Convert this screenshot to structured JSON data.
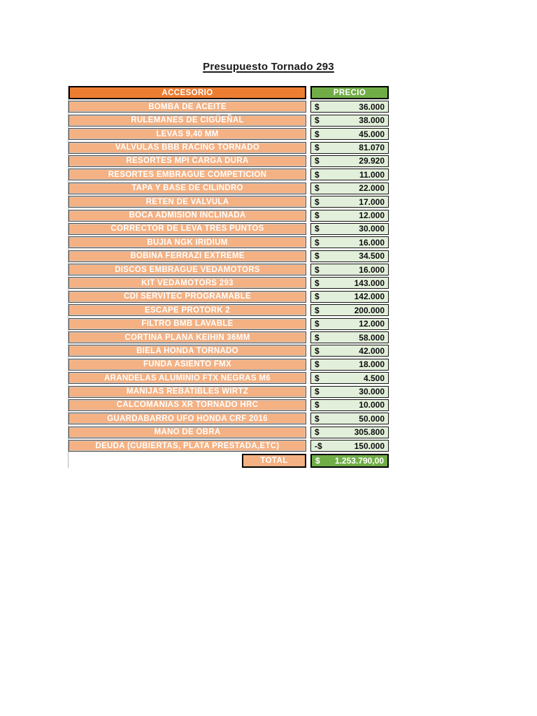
{
  "page": {
    "title": "Presupuesto Tornado 293"
  },
  "table": {
    "headers": {
      "accessory": "ACCESORIO",
      "price": "PRECIO"
    },
    "rows": [
      {
        "accessory": "BOMBA DE ACEITE",
        "sign": "$",
        "price": "36.000"
      },
      {
        "accessory": "RULEMANES DE CIGÜEÑAL",
        "sign": "$",
        "price": "38.000"
      },
      {
        "accessory": "LEVAS 9,40 MM",
        "sign": "$",
        "price": "45.000"
      },
      {
        "accessory": "VALVULAS BBB RACING TORNADO",
        "sign": "$",
        "price": "81.070"
      },
      {
        "accessory": "RESORTES MPI CARGA DURA",
        "sign": "$",
        "price": "29.920"
      },
      {
        "accessory": "RESORTES EMBRAGUE COMPETICION",
        "sign": "$",
        "price": "11.000"
      },
      {
        "accessory": "TAPA Y BASE DE CILINDRO",
        "sign": "$",
        "price": "22.000"
      },
      {
        "accessory": "RETEN DE VALVULA",
        "sign": "$",
        "price": "17.000"
      },
      {
        "accessory": "BOCA ADMISION INCLINADA",
        "sign": "$",
        "price": "12.000"
      },
      {
        "accessory": "CORRECTOR DE LEVA TRES PUNTOS",
        "sign": "$",
        "price": "30.000"
      },
      {
        "accessory": "BUJIA NGK IRIDIUM",
        "sign": "$",
        "price": "16.000"
      },
      {
        "accessory": "BOBINA FERRAZI EXTREME",
        "sign": "$",
        "price": "34.500"
      },
      {
        "accessory": "DISCOS EMBRAGUE VEDAMOTORS",
        "sign": "$",
        "price": "16.000"
      },
      {
        "accessory": "KIT VEDAMOTORS 293",
        "sign": "$",
        "price": "143.000"
      },
      {
        "accessory": "CDI SERVITEC PROGRAMABLE",
        "sign": "$",
        "price": "142.000"
      },
      {
        "accessory": "ESCAPE PROTORK 2",
        "sign": "$",
        "price": "200.000"
      },
      {
        "accessory": "FILTRO BMB LAVABLE",
        "sign": "$",
        "price": "12.000"
      },
      {
        "accessory": "CORTINA PLANA KEIHIN 36MM",
        "sign": "$",
        "price": "58.000"
      },
      {
        "accessory": "BIELA HONDA TORNADO",
        "sign": "$",
        "price": "42.000"
      },
      {
        "accessory": "FUNDA ASIENTO FMX",
        "sign": "$",
        "price": "18.000"
      },
      {
        "accessory": "ARANDELAS ALUMINIO FTX NEGRAS M6",
        "sign": "$",
        "price": "4.500"
      },
      {
        "accessory": "MANIJAS REBATIBLES WIRTZ",
        "sign": "$",
        "price": "30.000"
      },
      {
        "accessory": "CALCOMANIAS XR TORNADO HRC",
        "sign": "$",
        "price": "10.000"
      },
      {
        "accessory": "GUARDABARRO UFO HONDA CRF 2016",
        "sign": "$",
        "price": "50.000"
      },
      {
        "accessory": "MANO DE OBRA",
        "sign": "$",
        "price": "305.800"
      },
      {
        "accessory": "DEUDA (CUBIERTAS, PLATA PRESTADA,ETC)",
        "sign": "-$",
        "price": "150.000"
      }
    ],
    "total": {
      "label": "TOTAL",
      "sign": "$",
      "value": "1.253.790,00"
    }
  },
  "colors": {
    "header_orange": "#ED7D31",
    "row_orange": "#F4B183",
    "header_green": "#70AD47",
    "price_cell_green": "#E2EFDA",
    "total_green": "#70AD47"
  }
}
